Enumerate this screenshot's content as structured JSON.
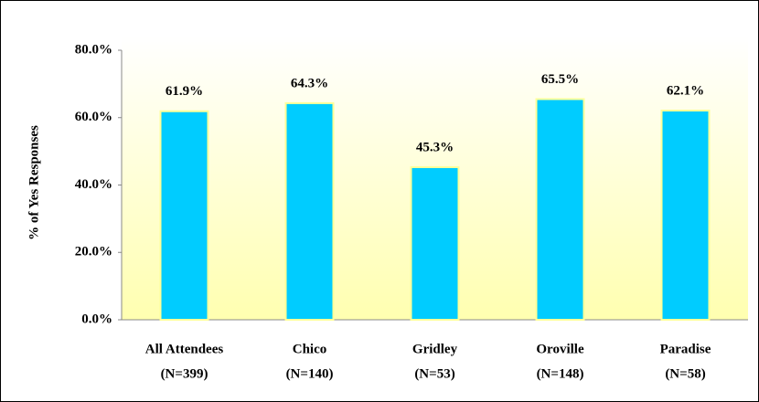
{
  "chart_data": {
    "type": "bar",
    "y_label": "% of Yes Responses",
    "categories": [
      "All Attendees",
      "Chico",
      "Gridley",
      "Oroville",
      "Paradise"
    ],
    "category_counts": [
      "(N=399)",
      "(N=140)",
      "(N=53)",
      "(N=148)",
      "(N=58)"
    ],
    "values": [
      61.9,
      64.3,
      45.3,
      65.5,
      62.1
    ],
    "value_labels": [
      "61.9%",
      "64.3%",
      "45.3%",
      "65.5%",
      "62.1%"
    ],
    "color": "#00ccff",
    "ylim": [
      0,
      80
    ],
    "yticks": [
      {
        "value": 0,
        "label": "0.0%"
      },
      {
        "value": 20,
        "label": "20.0%"
      },
      {
        "value": 40,
        "label": "40.0%"
      },
      {
        "value": 60,
        "label": "60.0%"
      },
      {
        "value": 80,
        "label": "80.0%"
      }
    ],
    "grid": false
  }
}
